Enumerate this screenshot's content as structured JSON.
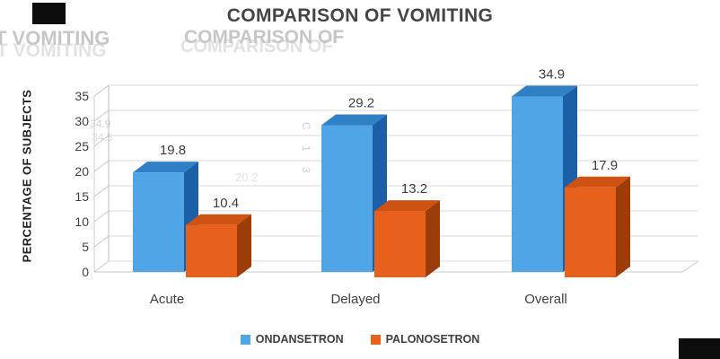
{
  "chart_data": {
    "type": "bar",
    "style": "3d-clustered",
    "title": "COMPARISON OF VOMITING",
    "categories": [
      "Acute",
      "Delayed",
      "Overall"
    ],
    "series": [
      {
        "name": "ONDANSETRON",
        "color": "#4FA5E6",
        "values": [
          19.8,
          29.2,
          34.9
        ]
      },
      {
        "name": "PALONOSETRON",
        "color": "#E8611C",
        "values": [
          10.4,
          13.2,
          17.9
        ]
      }
    ],
    "ylabel": "PERCENTAGE OF SUBJECTS",
    "xlabel": "",
    "ylim": [
      0,
      35
    ],
    "yticks": [
      0,
      5,
      10,
      15,
      20,
      25,
      30,
      35
    ],
    "grid": true,
    "legend_position": "bottom",
    "data_labels": true
  },
  "colors": {
    "blue_front": "#4FA5E6",
    "blue_top": "#2F80C4",
    "blue_side": "#1A5FA8",
    "orange_front": "#E8611C",
    "orange_top": "#CE5212",
    "orange_side": "#9C3C08"
  },
  "artifacts": {
    "ghost_left_1": "T VOMITING",
    "ghost_left_2": "T VOMITING",
    "ghost_center_1": "COMPARISON OF",
    "ghost_center_2": "COMPARISON OF",
    "ghost_num_1": "34.9",
    "ghost_num_2": "34.5",
    "ghost_num_3": "20.2",
    "ghost_vertical": "C 1 3"
  }
}
